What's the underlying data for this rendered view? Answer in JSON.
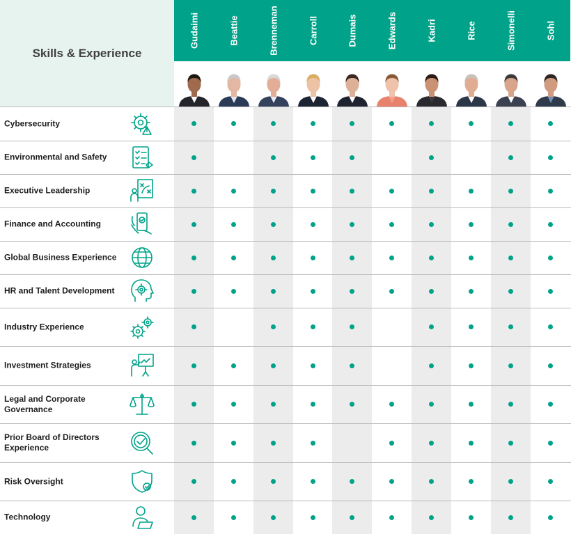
{
  "title": "Skills & Experience",
  "directors": [
    {
      "name": "Gudaimi",
      "skin": "#a06a4c",
      "hair": "#1d1613",
      "suit": "#23252b",
      "shirt": "#ffffff"
    },
    {
      "name": "Beattie",
      "skin": "#e3b7a2",
      "hair": "#c9c9c9",
      "suit": "#2c3c57",
      "shirt": "#dfe6f2"
    },
    {
      "name": "Brenneman",
      "skin": "#e3ae96",
      "hair": "#d8d8d8",
      "suit": "#34425c",
      "shirt": "#e6ecf5"
    },
    {
      "name": "Carroll",
      "skin": "#edc3a6",
      "hair": "#d9ad62",
      "suit": "#1d2433",
      "shirt": "#ffffff"
    },
    {
      "name": "Dumais",
      "skin": "#ddb197",
      "hair": "#3c2a22",
      "suit": "#1f2430",
      "shirt": "#ffffff"
    },
    {
      "name": "Edwards",
      "skin": "#eec2ab",
      "hair": "#8a5a38",
      "suit": "#e8826c",
      "shirt": "#f3a08d"
    },
    {
      "name": "Kadri",
      "skin": "#c99273",
      "hair": "#2a1b14",
      "suit": "#2a2a2e",
      "shirt": "#3a3a40"
    },
    {
      "name": "Rice",
      "skin": "#e0ad93",
      "hair": "#c9c0b8",
      "suit": "#2c3748",
      "shirt": "#ffffff"
    },
    {
      "name": "Simonelli",
      "skin": "#d8a58b",
      "hair": "#3a3a3a",
      "suit": "#3b4150",
      "shirt": "#ffffff"
    },
    {
      "name": "Sohl",
      "skin": "#d19b80",
      "hair": "#2e2622",
      "suit": "#2f3a4b",
      "shirt": "#6f8fb6"
    }
  ],
  "skills": [
    {
      "label": "Cybersecurity",
      "icon": "gear-warning-icon",
      "has": [
        1,
        1,
        1,
        1,
        1,
        1,
        1,
        1,
        1,
        1
      ]
    },
    {
      "label": "Environmental and Safety",
      "icon": "checklist-icon",
      "has": [
        1,
        0,
        1,
        1,
        1,
        0,
        1,
        0,
        1,
        1
      ]
    },
    {
      "label": "Executive Leadership",
      "icon": "strategy-board-icon",
      "has": [
        1,
        1,
        1,
        1,
        1,
        1,
        1,
        1,
        1,
        1
      ]
    },
    {
      "label": "Finance and Accounting",
      "icon": "mobile-payment-icon",
      "has": [
        1,
        1,
        1,
        1,
        1,
        1,
        1,
        1,
        1,
        1
      ]
    },
    {
      "label": "Global Business Experience",
      "icon": "globe-icon",
      "has": [
        1,
        1,
        1,
        1,
        1,
        1,
        1,
        1,
        1,
        1
      ]
    },
    {
      "label": "HR and Talent Development",
      "icon": "head-gear-icon",
      "has": [
        1,
        1,
        1,
        1,
        1,
        1,
        1,
        1,
        1,
        1
      ]
    },
    {
      "label": "Industry Experience",
      "icon": "gears-icon",
      "has": [
        1,
        0,
        1,
        1,
        1,
        0,
        1,
        1,
        1,
        1
      ]
    },
    {
      "label": "Investment Strategies",
      "icon": "presentation-icon",
      "has": [
        1,
        1,
        1,
        1,
        1,
        0,
        1,
        1,
        1,
        1
      ]
    },
    {
      "label": "Legal and Corporate Governance",
      "icon": "scales-icon",
      "has": [
        1,
        1,
        1,
        1,
        1,
        1,
        1,
        1,
        1,
        1
      ]
    },
    {
      "label": "Prior Board of Directors Experience",
      "icon": "badge-check-icon",
      "has": [
        1,
        1,
        1,
        1,
        0,
        1,
        1,
        1,
        1,
        1
      ]
    },
    {
      "label": "Risk Oversight",
      "icon": "shield-check-icon",
      "has": [
        1,
        1,
        1,
        1,
        1,
        1,
        1,
        1,
        1,
        1
      ]
    },
    {
      "label": "Technology",
      "icon": "user-laptop-icon",
      "has": [
        1,
        1,
        1,
        1,
        1,
        1,
        1,
        1,
        1,
        1
      ]
    }
  ],
  "colors": {
    "accent": "#00a389",
    "header_bg": "#e7f3ef",
    "shade": "#ececec",
    "rule": "#b9b9b9",
    "text": "#1e1e1e"
  }
}
